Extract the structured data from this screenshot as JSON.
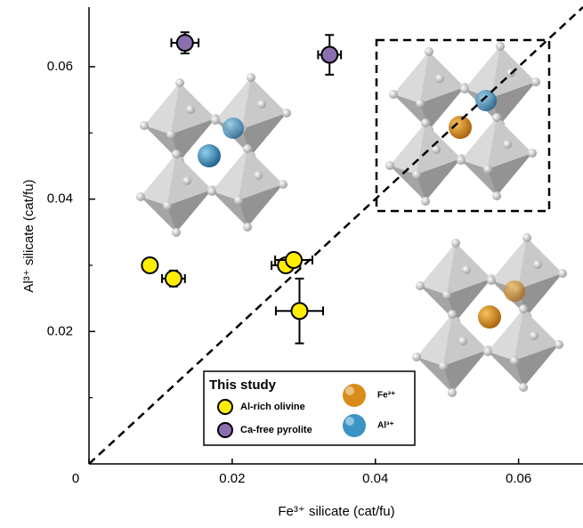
{
  "chart_data": {
    "type": "scatter",
    "x_label": "Fe³⁺ silicate (cat/fu)",
    "y_label": "Al³⁺ silicate (cat/fu)",
    "xlim": [
      0,
      0.069
    ],
    "ylim": [
      0,
      0.069
    ],
    "xticks": [
      0,
      0.02,
      0.04,
      0.06
    ],
    "yticks": [
      0.02,
      0.04,
      0.06
    ],
    "yminor_ticks": [
      0.01,
      0.03,
      0.05
    ],
    "diagonal": true,
    "legend_title": "This study",
    "series": [
      {
        "name": "Al-rich olivine",
        "color": "#ffee00",
        "x": [
          0.0085,
          0.0118,
          0.0275,
          0.0286,
          0.0294
        ],
        "values": [
          0.03,
          0.028,
          0.03,
          0.0308,
          0.0231
        ],
        "xerr": [
          0.0008,
          0.0016,
          0.002,
          0.0026,
          0.0033
        ],
        "yerr": [
          0.0005,
          0.0012,
          0.001,
          0.001,
          0.0049
        ]
      },
      {
        "name": "Ca-free pyrolite",
        "color": "#8a6fb0",
        "x": [
          0.0134,
          0.0336
        ],
        "values": [
          0.0636,
          0.0618
        ],
        "xerr": [
          0.0019,
          0.0016
        ],
        "yerr": [
          0.0016,
          0.003
        ]
      }
    ],
    "sphere_legend": [
      {
        "name": "Fe³⁺",
        "color": "#d98c1a"
      },
      {
        "name": "Al³⁺",
        "color": "#3a94c4"
      }
    ]
  }
}
